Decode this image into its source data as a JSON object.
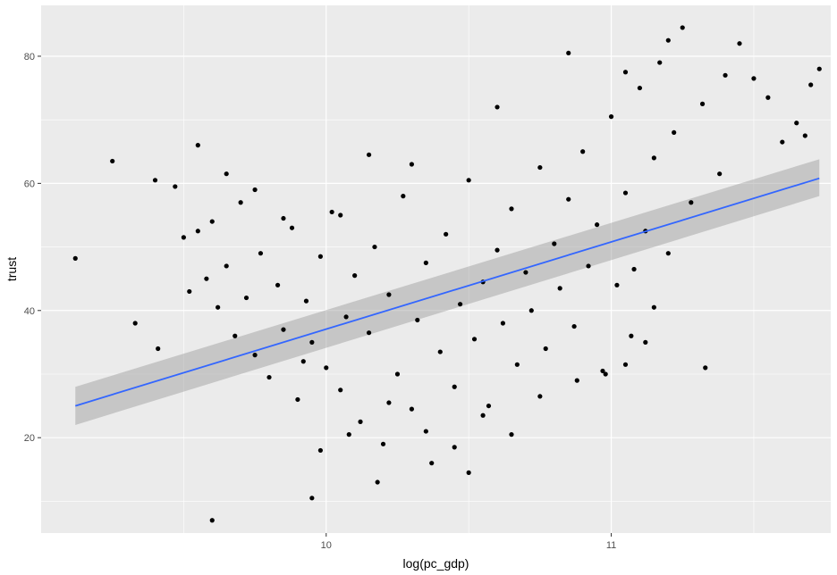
{
  "chart_data": {
    "type": "scatter",
    "xlabel": "log(pc_gdp)",
    "ylabel": "trust",
    "xlim": [
      9.0,
      11.77
    ],
    "ylim": [
      5,
      88
    ],
    "x_ticks": [
      10,
      11
    ],
    "x_minor_ticks": [
      9.5,
      10.5,
      11.5
    ],
    "y_ticks": [
      20,
      40,
      60,
      80
    ],
    "y_minor_ticks": [
      10,
      30,
      50,
      70
    ],
    "x_tick_labels": [
      "10",
      "11"
    ],
    "y_tick_labels": [
      "20",
      "40",
      "60",
      "80"
    ],
    "grid": true,
    "legend": "none",
    "colors": {
      "panel": "#EBEBEB",
      "grid": "#FFFFFF",
      "points": "#000000",
      "fit_line": "#3366FF",
      "ribbon": "#999999"
    },
    "fit": {
      "method": "linear",
      "x": [
        9.12,
        11.73
      ],
      "y": [
        25.0,
        60.8
      ],
      "ci_lower": [
        22.0,
        58.0
      ],
      "ci_upper": [
        28.0,
        63.8
      ]
    },
    "points": [
      [
        9.12,
        48.2
      ],
      [
        9.33,
        38.0
      ],
      [
        9.41,
        34.0
      ],
      [
        9.47,
        59.5
      ],
      [
        9.5,
        51.5
      ],
      [
        9.52,
        43.0
      ],
      [
        9.55,
        52.5
      ],
      [
        9.58,
        45.0
      ],
      [
        9.6,
        54.0
      ],
      [
        9.62,
        40.5
      ],
      [
        9.65,
        47.0
      ],
      [
        9.68,
        36.0
      ],
      [
        9.7,
        57.0
      ],
      [
        9.72,
        42.0
      ],
      [
        9.75,
        33.0
      ],
      [
        9.77,
        49.0
      ],
      [
        9.8,
        29.5
      ],
      [
        9.83,
        44.0
      ],
      [
        9.85,
        37.0
      ],
      [
        9.88,
        53.0
      ],
      [
        9.9,
        26.0
      ],
      [
        9.93,
        41.5
      ],
      [
        9.95,
        35.0
      ],
      [
        9.98,
        48.5
      ],
      [
        10.0,
        31.0
      ],
      [
        10.02,
        55.5
      ],
      [
        10.05,
        27.5
      ],
      [
        10.07,
        39.0
      ],
      [
        10.1,
        45.5
      ],
      [
        10.12,
        22.5
      ],
      [
        10.15,
        36.5
      ],
      [
        10.17,
        50.0
      ],
      [
        10.2,
        19.0
      ],
      [
        10.22,
        42.5
      ],
      [
        10.25,
        30.0
      ],
      [
        10.27,
        58.0
      ],
      [
        10.3,
        24.5
      ],
      [
        10.32,
        38.5
      ],
      [
        10.35,
        47.5
      ],
      [
        10.37,
        16.0
      ],
      [
        10.4,
        33.5
      ],
      [
        10.42,
        52.0
      ],
      [
        10.45,
        28.0
      ],
      [
        10.47,
        41.0
      ],
      [
        10.5,
        60.5
      ],
      [
        10.52,
        35.5
      ],
      [
        10.55,
        44.5
      ],
      [
        10.57,
        25.0
      ],
      [
        10.6,
        49.5
      ],
      [
        10.62,
        38.0
      ],
      [
        10.65,
        56.0
      ],
      [
        10.67,
        31.5
      ],
      [
        10.7,
        46.0
      ],
      [
        10.72,
        40.0
      ],
      [
        10.75,
        62.5
      ],
      [
        10.77,
        34.0
      ],
      [
        10.8,
        50.5
      ],
      [
        10.82,
        43.5
      ],
      [
        10.85,
        57.5
      ],
      [
        10.87,
        37.5
      ],
      [
        10.9,
        65.0
      ],
      [
        10.92,
        47.0
      ],
      [
        10.95,
        53.5
      ],
      [
        10.97,
        30.5
      ],
      [
        11.0,
        70.5
      ],
      [
        11.02,
        44.0
      ],
      [
        11.05,
        58.5
      ],
      [
        11.07,
        36.0
      ],
      [
        11.1,
        75.0
      ],
      [
        11.12,
        52.5
      ],
      [
        11.15,
        64.0
      ],
      [
        11.17,
        79.0
      ],
      [
        11.2,
        49.0
      ],
      [
        11.22,
        68.0
      ],
      [
        11.25,
        84.5
      ],
      [
        11.28,
        57.0
      ],
      [
        11.32,
        72.5
      ],
      [
        11.38,
        61.5
      ],
      [
        11.45,
        82.0
      ],
      [
        11.5,
        76.5
      ],
      [
        11.55,
        73.5
      ],
      [
        11.6,
        66.5
      ],
      [
        11.65,
        69.5
      ],
      [
        11.68,
        67.5
      ],
      [
        11.7,
        75.5
      ],
      [
        11.73,
        78.0
      ],
      [
        9.95,
        10.5
      ],
      [
        9.6,
        7.0
      ],
      [
        10.18,
        13.0
      ],
      [
        10.5,
        14.5
      ],
      [
        10.05,
        55.0
      ],
      [
        10.15,
        64.5
      ],
      [
        10.3,
        63.0
      ],
      [
        10.6,
        72.0
      ],
      [
        10.85,
        80.5
      ],
      [
        11.05,
        77.5
      ],
      [
        11.2,
        82.5
      ],
      [
        11.4,
        77.0
      ],
      [
        11.33,
        31.0
      ],
      [
        11.15,
        40.5
      ],
      [
        9.25,
        63.5
      ],
      [
        9.4,
        60.5
      ],
      [
        9.55,
        66.0
      ],
      [
        9.65,
        61.5
      ],
      [
        9.75,
        59.0
      ],
      [
        9.85,
        54.5
      ],
      [
        9.92,
        32.0
      ],
      [
        9.98,
        18.0
      ],
      [
        10.08,
        20.5
      ],
      [
        10.22,
        25.5
      ],
      [
        10.35,
        21.0
      ],
      [
        10.45,
        18.5
      ],
      [
        10.55,
        23.5
      ],
      [
        10.65,
        20.5
      ],
      [
        10.75,
        26.5
      ],
      [
        10.88,
        29.0
      ],
      [
        10.98,
        30.0
      ],
      [
        11.05,
        31.5
      ],
      [
        11.08,
        46.5
      ],
      [
        11.12,
        35.0
      ]
    ]
  }
}
